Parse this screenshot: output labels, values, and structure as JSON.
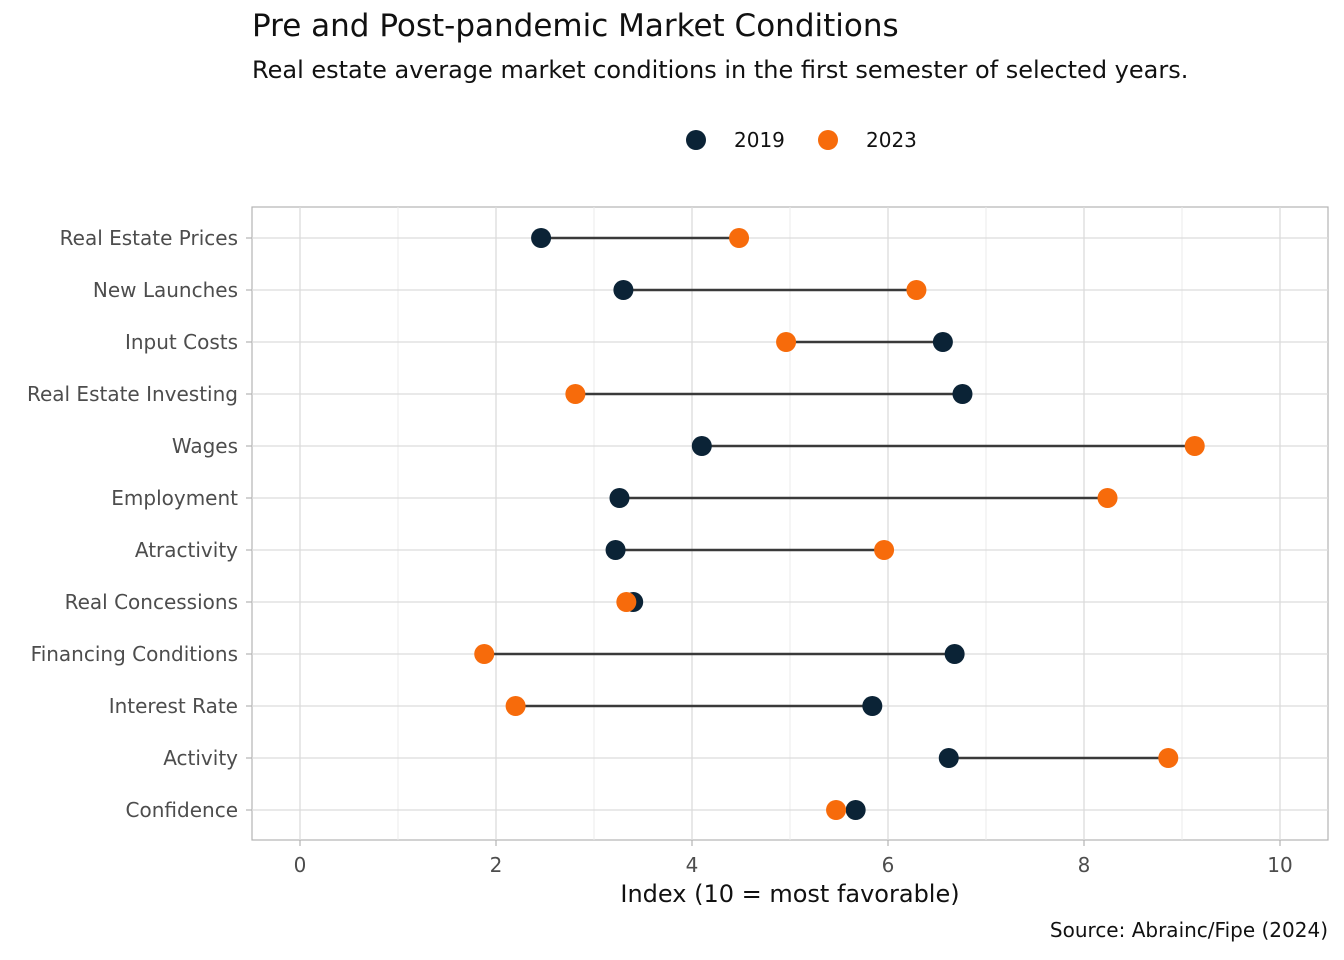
{
  "title": "Pre and Post-pandemic Market Conditions",
  "subtitle": "Real estate average market conditions in the first semester of selected years.",
  "caption": "Source: Abrainc/Fipe (2024)",
  "chart_data": {
    "type": "dumbbell",
    "xlabel": "Index (10 = most favorable)",
    "ylabel": "",
    "xlim": [
      -0.5,
      10.5
    ],
    "xticks": [
      0,
      2,
      4,
      6,
      8,
      10
    ],
    "grid": true,
    "legend_position": "top",
    "categories": [
      "Real Estate Prices",
      "New Launches",
      "Input Costs",
      "Real Estate Investing",
      "Wages",
      "Employment",
      "Atractivity",
      "Real Concessions",
      "Financing Conditions",
      "Interest Rate",
      "Activity",
      "Confidence"
    ],
    "series": [
      {
        "name": "2019",
        "color": "#0b2336",
        "values": [
          2.46,
          3.3,
          6.56,
          6.76,
          4.1,
          3.26,
          3.22,
          3.4,
          6.68,
          5.84,
          6.62,
          5.67
        ]
      },
      {
        "name": "2023",
        "color": "#f76b0b",
        "values": [
          4.48,
          6.29,
          4.96,
          2.81,
          9.13,
          8.24,
          5.96,
          3.33,
          1.88,
          2.2,
          8.86,
          5.47
        ]
      }
    ],
    "segment_color": "#3a3a3a"
  }
}
